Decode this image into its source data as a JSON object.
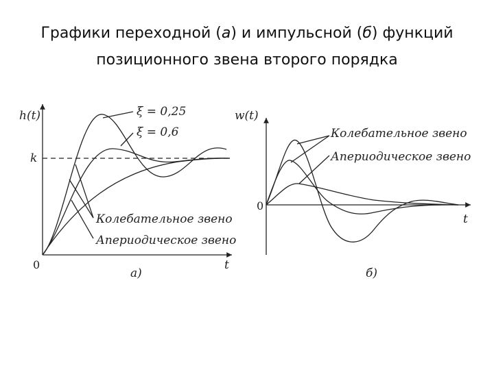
{
  "title": {
    "line1_pre": "Графики переходной (",
    "line1_a": "а",
    "line1_mid": ") и импульсной (",
    "line1_b": "б",
    "line1_post": ") функций",
    "line2": "позиционного звена второго порядка"
  },
  "panel_a": {
    "y_axis_label": "h(t)",
    "x_axis_label": "t",
    "origin_label": "0",
    "k_label": "k",
    "xi1": "ξ = 0,25",
    "xi2": "ξ = 0,6",
    "oscillatory_label": "Колебательное звено",
    "aperiodic_label": "Апериодическое звено",
    "caption": "а)"
  },
  "panel_b": {
    "y_axis_label": "w(t)",
    "x_axis_label": "t",
    "origin_label": "0",
    "oscillatory_label": "Колебательное звено",
    "aperiodic_label": "Апериодическое звено",
    "caption": "б)"
  },
  "colors": {
    "ink": "#222222"
  }
}
